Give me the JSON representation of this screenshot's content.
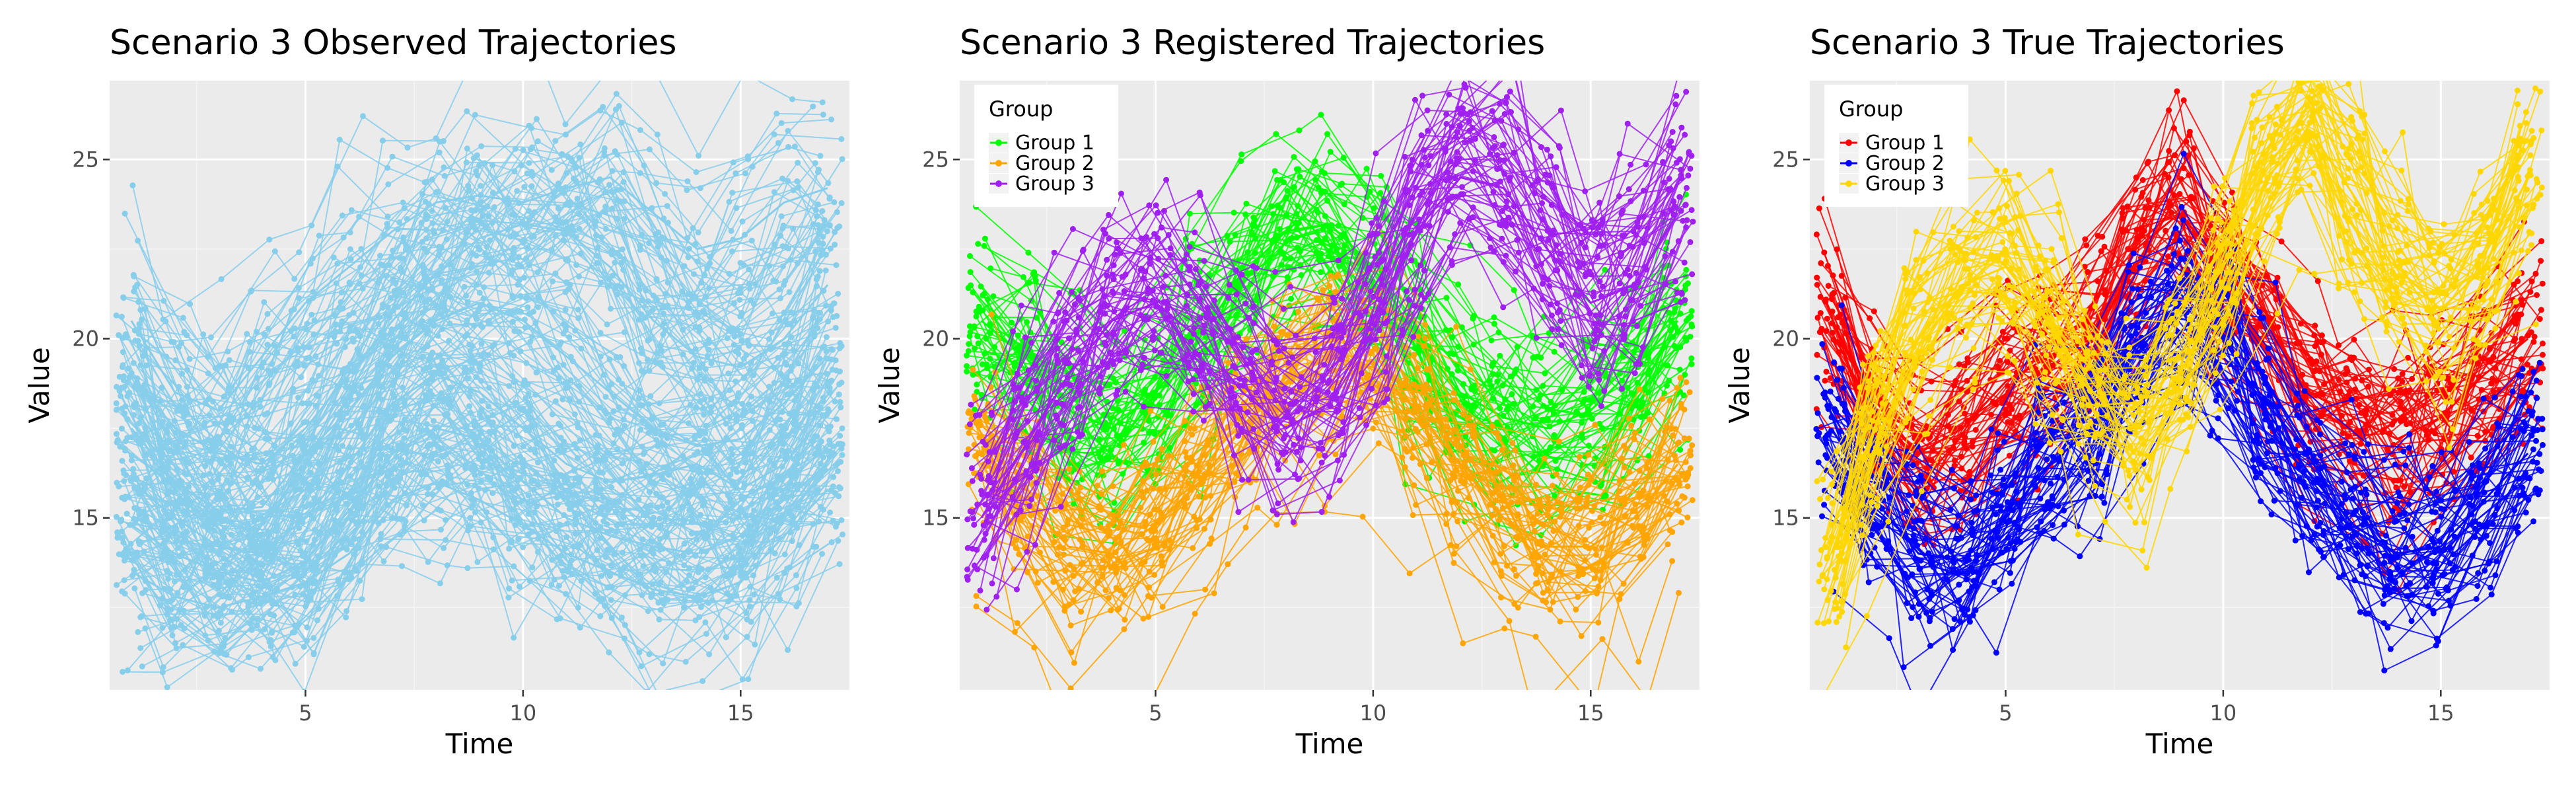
{
  "chart_data": [
    {
      "type": "line",
      "title": "Scenario 3 Observed Trajectories",
      "xlabel": "Time",
      "ylabel": "Value",
      "xlim": [
        0.5,
        17.5
      ],
      "ylim": [
        10.2,
        27.2
      ],
      "x_ticks": [
        5,
        10,
        15
      ],
      "y_ticks": [
        15,
        20,
        25
      ],
      "grid": true,
      "legend": null,
      "x": [
        1,
        2,
        3,
        4,
        5,
        6,
        7,
        8,
        9,
        10,
        11,
        12,
        13,
        14,
        15,
        16,
        17
      ],
      "series": [
        {
          "values": [
            20.5,
            18.5,
            18.0,
            19.5,
            21.0,
            22.0,
            23.0,
            23.8,
            24.0,
            23.8,
            24.2,
            24.5,
            23.5,
            22.5,
            22.8,
            23.8,
            24.2
          ],
          "color": "#87CEEB"
        },
        {
          "values": [
            19.0,
            17.5,
            16.8,
            16.5,
            17.5,
            19.0,
            20.5,
            21.8,
            22.8,
            23.2,
            23.0,
            22.0,
            20.5,
            19.5,
            19.2,
            20.0,
            21.5
          ],
          "color": "#87CEEB"
        },
        {
          "values": [
            17.5,
            16.0,
            15.2,
            15.3,
            16.8,
            18.0,
            19.5,
            20.5,
            21.0,
            20.5,
            19.5,
            18.5,
            17.5,
            17.0,
            17.2,
            18.2,
            19.5
          ],
          "color": "#87CEEB"
        },
        {
          "values": [
            16.0,
            15.0,
            14.2,
            14.0,
            15.0,
            16.5,
            18.2,
            19.0,
            18.5,
            17.5,
            16.5,
            16.0,
            16.2,
            16.5,
            15.8,
            16.5,
            18.0
          ],
          "color": "#87CEEB"
        },
        {
          "values": [
            14.8,
            14.0,
            13.5,
            13.2,
            13.8,
            15.2,
            16.8,
            17.5,
            17.2,
            16.0,
            15.0,
            14.5,
            14.2,
            14.0,
            14.5,
            15.5,
            16.5
          ],
          "color": "#87CEEB"
        },
        {
          "values": [
            13.5,
            12.8,
            12.5,
            12.8,
            13.2,
            14.0,
            15.5,
            16.0,
            15.5,
            14.8,
            14.0,
            13.5,
            13.0,
            12.8,
            13.2,
            14.5,
            15.8
          ],
          "color": "#87CEEB"
        }
      ]
    },
    {
      "type": "line",
      "title": "Scenario 3 Registered Trajectories",
      "xlabel": "Time",
      "ylabel": "Value",
      "xlim": [
        0.5,
        17.5
      ],
      "ylim": [
        10.2,
        27.2
      ],
      "x_ticks": [
        5,
        10,
        15
      ],
      "y_ticks": [
        15,
        20,
        25
      ],
      "grid": true,
      "legend": {
        "title": "Group",
        "position": "top-left",
        "labels": [
          "Group 1",
          "Group 2",
          "Group 3"
        ]
      },
      "x": [
        1,
        2,
        3,
        4,
        5,
        6,
        7,
        8,
        9,
        10,
        11,
        12,
        13,
        14,
        15,
        16,
        17
      ],
      "series": [
        {
          "name": "Group 1",
          "color": "#00FF00",
          "values": [
            20.5,
            19.5,
            18.0,
            17.5,
            18.5,
            20.0,
            21.8,
            23.0,
            23.2,
            22.0,
            20.0,
            18.5,
            17.8,
            17.5,
            18.0,
            19.2,
            20.5
          ]
        },
        {
          "name": "Group 2",
          "color": "#FFA500",
          "values": [
            17.0,
            15.5,
            14.2,
            14.0,
            14.8,
            16.0,
            17.5,
            18.8,
            19.5,
            19.2,
            18.0,
            16.5,
            15.0,
            14.2,
            14.2,
            15.0,
            16.5
          ]
        },
        {
          "name": "Group 3",
          "color": "#A020F0",
          "values": [
            15.0,
            17.0,
            19.0,
            20.5,
            21.0,
            20.0,
            18.5,
            17.5,
            18.2,
            20.5,
            23.0,
            24.5,
            24.2,
            22.5,
            21.0,
            21.5,
            23.5
          ]
        }
      ]
    },
    {
      "type": "line",
      "title": "Scenario 3 True Trajectories",
      "xlabel": "Time",
      "ylabel": "Value",
      "xlim": [
        0.5,
        17.5
      ],
      "ylim": [
        10.2,
        27.2
      ],
      "x_ticks": [
        5,
        10,
        15
      ],
      "y_ticks": [
        15,
        20,
        25
      ],
      "grid": true,
      "legend": {
        "title": "Group",
        "position": "top-left",
        "labels": [
          "Group 1",
          "Group 2",
          "Group 3"
        ]
      },
      "x": [
        1,
        2,
        3,
        4,
        5,
        6,
        7,
        8,
        9,
        10,
        11,
        12,
        13,
        14,
        15,
        16,
        17
      ],
      "series": [
        {
          "name": "Group 1",
          "color": "#FF0000",
          "values": [
            20.5,
            18.0,
            16.8,
            17.5,
            18.8,
            19.5,
            20.0,
            22.5,
            23.5,
            22.0,
            20.5,
            18.5,
            17.8,
            17.2,
            17.8,
            19.0,
            20.0
          ]
        },
        {
          "name": "Group 2",
          "color": "#0000FF",
          "values": [
            17.5,
            15.5,
            14.0,
            13.8,
            15.0,
            16.5,
            17.5,
            19.8,
            21.0,
            20.0,
            18.0,
            16.2,
            14.8,
            14.0,
            14.2,
            15.5,
            16.8
          ]
        },
        {
          "name": "Group 3",
          "color": "#FFD700",
          "values": [
            14.0,
            17.5,
            20.0,
            21.5,
            22.0,
            20.5,
            18.5,
            17.5,
            19.0,
            21.5,
            24.5,
            25.8,
            24.0,
            22.0,
            20.8,
            22.0,
            24.5
          ]
        }
      ]
    }
  ]
}
